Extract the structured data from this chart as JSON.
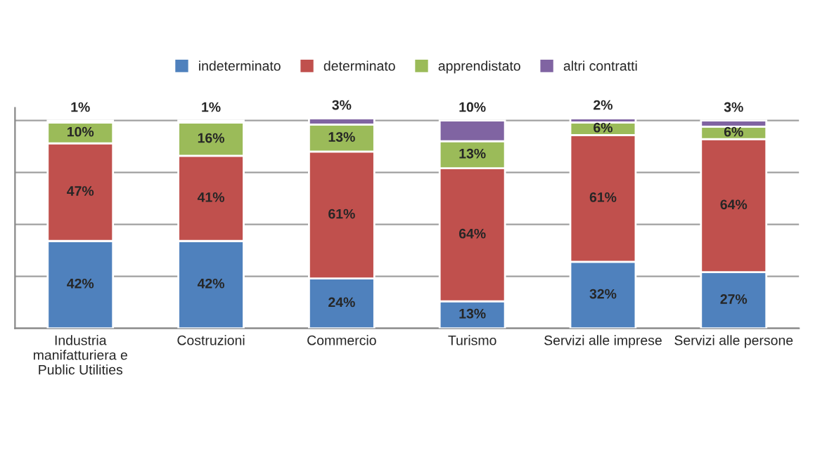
{
  "chart_data": {
    "type": "bar",
    "stacked": true,
    "legend": "top",
    "grid": "y",
    "tick_labels": "x",
    "categories": [
      "Industria\nmanifatturiera e\nPublic Utilities",
      "Costruzioni",
      "Commercio",
      "Turismo",
      "Servizi alle imprese",
      "Servizi alle persone"
    ],
    "series": [
      {
        "name": "indeterminato",
        "color": "#4f81bd",
        "values": [
          42,
          42,
          24,
          13,
          32,
          27
        ],
        "value_labels": [
          "42%",
          "42%",
          "24%",
          "13%",
          "32%",
          "27%"
        ]
      },
      {
        "name": "determinato",
        "color": "#c0504d",
        "values": [
          47,
          41,
          61,
          64,
          61,
          64
        ],
        "value_labels": [
          "47%",
          "41%",
          "61%",
          "64%",
          "61%",
          "64%"
        ]
      },
      {
        "name": "apprendistato",
        "color": "#9bbb59",
        "values": [
          10,
          16,
          13,
          13,
          6,
          6
        ],
        "value_labels": [
          "10%",
          "16%",
          "13%",
          "13%",
          "6%",
          "6%"
        ]
      },
      {
        "name": "altri contratti",
        "color": "#8064a2",
        "values": [
          1,
          1,
          3,
          10,
          2,
          3
        ],
        "value_labels": [
          "1%",
          "1%",
          "3%",
          "10%",
          "2%",
          "3%"
        ]
      }
    ]
  }
}
